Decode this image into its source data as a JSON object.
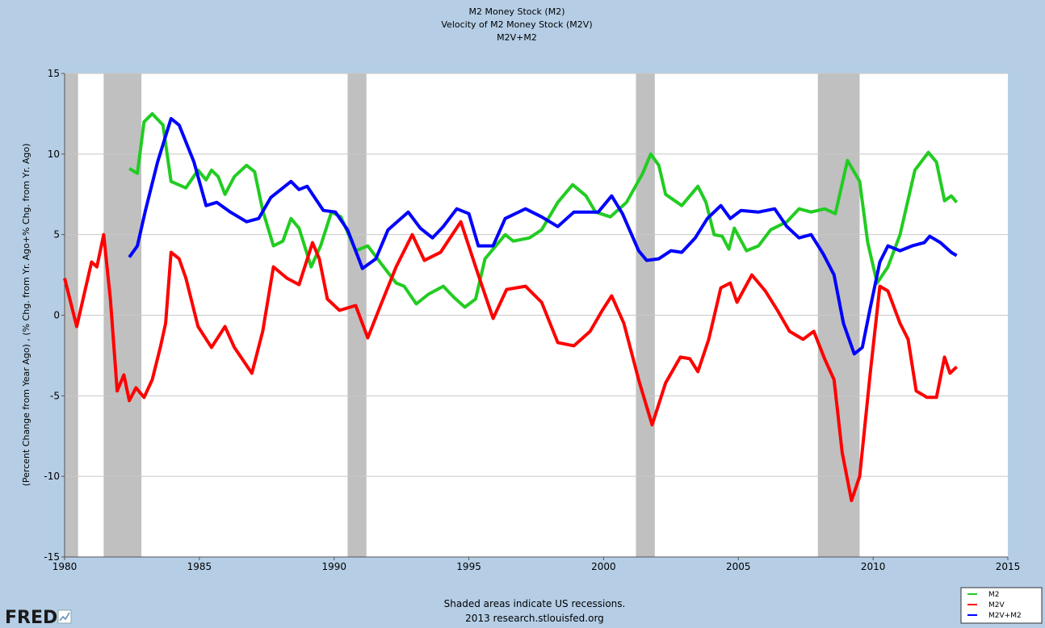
{
  "chart_data": {
    "type": "line",
    "title": [
      "M2 Money Stock (M2)",
      "Velocity of M2 Money Stock (M2V)",
      "M2V+M2"
    ],
    "y_label": "(Percent Change from Year Ago) , (% Chg. from Yr. Ago+% Chg. from Yr. Ago)",
    "note": [
      "Shaded areas indicate US recessions.",
      "2013 research.stlouisfed.org"
    ],
    "logo": "FRED",
    "xlim": [
      1980,
      2015
    ],
    "xticks": [
      1980,
      1985,
      1990,
      1995,
      2000,
      2005,
      2010,
      2015
    ],
    "ylim": [
      -15,
      15
    ],
    "yticks": [
      -15,
      -10,
      -5,
      0,
      5,
      10,
      15
    ],
    "grid": true,
    "legend": "bottom-right",
    "recessions": [
      [
        1980.0,
        1980.5
      ],
      [
        1981.45,
        1982.85
      ],
      [
        1990.5,
        1991.2
      ],
      [
        2001.2,
        2001.9
      ],
      [
        2007.95,
        2009.5
      ]
    ],
    "recession_color": "#c0c0c0",
    "series": [
      {
        "name": "M2",
        "color": "#22cc22",
        "x": [
          1982.4,
          1982.7,
          1982.95,
          1983.25,
          1983.65,
          1983.95,
          1984.5,
          1984.95,
          1985.25,
          1985.45,
          1985.7,
          1985.95,
          1986.3,
          1986.75,
          1987.05,
          1987.35,
          1987.75,
          1988.1,
          1988.4,
          1988.7,
          1989.15,
          1989.5,
          1989.9,
          1990.25,
          1990.8,
          1991.25,
          1991.7,
          1992.3,
          1992.6,
          1993.05,
          1993.5,
          1994.05,
          1994.45,
          1994.85,
          1995.25,
          1995.6,
          1996.35,
          1996.65,
          1997.25,
          1997.7,
          1998.3,
          1998.85,
          1999.35,
          1999.7,
          2000.25,
          2000.85,
          2001.45,
          2001.75,
          2002.05,
          2002.3,
          2002.9,
          2003.5,
          2003.8,
          2004.1,
          2004.4,
          2004.65,
          2004.85,
          2005.3,
          2005.75,
          2006.2,
          2006.8,
          2007.25,
          2007.7,
          2008.2,
          2008.6,
          2009.05,
          2009.5,
          2009.8,
          2010.15,
          2010.55,
          2011.0,
          2011.55,
          2012.05,
          2012.35,
          2012.65,
          2012.9,
          2013.1
        ],
        "values": [
          9.1,
          8.8,
          12.0,
          12.5,
          11.8,
          8.3,
          7.9,
          9.0,
          8.4,
          9.0,
          8.6,
          7.5,
          8.6,
          9.3,
          8.9,
          6.5,
          4.3,
          4.6,
          6.0,
          5.4,
          3.0,
          4.3,
          6.4,
          6.1,
          4.0,
          4.3,
          3.3,
          2.0,
          1.8,
          0.7,
          1.3,
          1.8,
          1.1,
          0.5,
          1.0,
          3.5,
          5.0,
          4.6,
          4.8,
          5.3,
          7.0,
          8.1,
          7.4,
          6.4,
          6.1,
          7.0,
          8.8,
          10.0,
          9.3,
          7.5,
          6.8,
          8.0,
          7.0,
          5.0,
          4.9,
          4.1,
          5.4,
          4.0,
          4.3,
          5.3,
          5.8,
          6.6,
          6.4,
          6.6,
          6.3,
          9.6,
          8.3,
          4.5,
          2.0,
          3.0,
          5.0,
          9.0,
          10.1,
          9.5,
          7.1,
          7.4,
          7.0
        ]
      },
      {
        "name": "M2V",
        "color": "#ff0000",
        "x": [
          1980.0,
          1980.45,
          1981.0,
          1981.2,
          1981.45,
          1981.7,
          1981.95,
          1982.2,
          1982.4,
          1982.65,
          1982.95,
          1983.25,
          1983.55,
          1983.75,
          1983.95,
          1984.25,
          1984.5,
          1984.95,
          1985.45,
          1985.95,
          1986.3,
          1986.95,
          1987.35,
          1987.75,
          1988.25,
          1988.7,
          1989.2,
          1989.45,
          1989.75,
          1990.2,
          1990.8,
          1991.25,
          1991.7,
          1992.3,
          1992.9,
          1993.35,
          1993.95,
          1994.7,
          1995.35,
          1995.9,
          1996.4,
          1997.1,
          1997.7,
          1998.3,
          1998.9,
          1999.5,
          1999.95,
          2000.3,
          2000.75,
          2001.3,
          2001.8,
          2002.3,
          2002.85,
          2003.2,
          2003.5,
          2003.9,
          2004.35,
          2004.7,
          2004.95,
          2005.5,
          2006.0,
          2006.45,
          2006.9,
          2007.4,
          2007.8,
          2008.2,
          2008.55,
          2008.85,
          2009.2,
          2009.5,
          2009.9,
          2010.25,
          2010.55,
          2011.0,
          2011.3,
          2011.6,
          2012.0,
          2012.35,
          2012.65,
          2012.85,
          2013.1
        ],
        "values": [
          2.3,
          -0.7,
          3.3,
          3.0,
          5.0,
          1.0,
          -4.7,
          -3.7,
          -5.3,
          -4.5,
          -5.1,
          -4.0,
          -2.0,
          -0.5,
          3.9,
          3.5,
          2.3,
          -0.7,
          -2.0,
          -0.7,
          -2.0,
          -3.6,
          -1.0,
          3.0,
          2.3,
          1.9,
          4.5,
          3.5,
          1.0,
          0.3,
          0.6,
          -1.4,
          0.5,
          3.0,
          5.0,
          3.4,
          3.9,
          5.8,
          2.5,
          -0.2,
          1.6,
          1.8,
          0.8,
          -1.7,
          -1.9,
          -1.0,
          0.3,
          1.2,
          -0.5,
          -4.0,
          -6.8,
          -4.2,
          -2.6,
          -2.7,
          -3.5,
          -1.5,
          1.7,
          2.0,
          0.8,
          2.5,
          1.5,
          0.3,
          -1.0,
          -1.5,
          -1.0,
          -2.7,
          -4.0,
          -8.5,
          -11.5,
          -10.0,
          -3.5,
          1.8,
          1.5,
          -0.5,
          -1.5,
          -4.7,
          -5.1,
          -5.1,
          -2.6,
          -3.6,
          -3.2
        ]
      },
      {
        "name": "M2V+M2",
        "color": "#0000ff",
        "x": [
          1982.4,
          1982.7,
          1983.0,
          1983.45,
          1983.95,
          1984.25,
          1984.8,
          1985.25,
          1985.65,
          1986.15,
          1986.75,
          1987.2,
          1987.65,
          1988.4,
          1988.7,
          1989.0,
          1989.6,
          1990.05,
          1990.5,
          1991.05,
          1991.55,
          1992.0,
          1992.75,
          1993.2,
          1993.65,
          1994.05,
          1994.55,
          1995.0,
          1995.35,
          1995.9,
          1996.35,
          1997.1,
          1997.7,
          1998.3,
          1998.9,
          1999.8,
          2000.3,
          2000.7,
          2001.3,
          2001.6,
          2002.05,
          2002.5,
          2002.9,
          2003.4,
          2003.85,
          2004.35,
          2004.7,
          2005.1,
          2005.75,
          2006.35,
          2006.8,
          2007.25,
          2007.7,
          2008.15,
          2008.55,
          2008.9,
          2009.3,
          2009.6,
          2009.9,
          2010.25,
          2010.55,
          2011.0,
          2011.45,
          2011.9,
          2012.1,
          2012.5,
          2012.9,
          2013.1
        ],
        "values": [
          3.6,
          4.3,
          6.5,
          9.5,
          12.2,
          11.8,
          9.5,
          6.8,
          7.0,
          6.4,
          5.8,
          6.0,
          7.3,
          8.3,
          7.8,
          8.0,
          6.5,
          6.4,
          5.3,
          2.9,
          3.5,
          5.3,
          6.4,
          5.4,
          4.8,
          5.5,
          6.6,
          6.3,
          4.3,
          4.3,
          6.0,
          6.6,
          6.1,
          5.5,
          6.4,
          6.4,
          7.4,
          6.3,
          4.0,
          3.4,
          3.5,
          4.0,
          3.9,
          4.8,
          6.0,
          6.8,
          6.0,
          6.5,
          6.4,
          6.6,
          5.5,
          4.8,
          5.0,
          3.8,
          2.5,
          -0.5,
          -2.4,
          -2.0,
          0.5,
          3.3,
          4.3,
          4.0,
          4.3,
          4.5,
          4.9,
          4.5,
          3.9,
          3.7
        ]
      }
    ]
  }
}
